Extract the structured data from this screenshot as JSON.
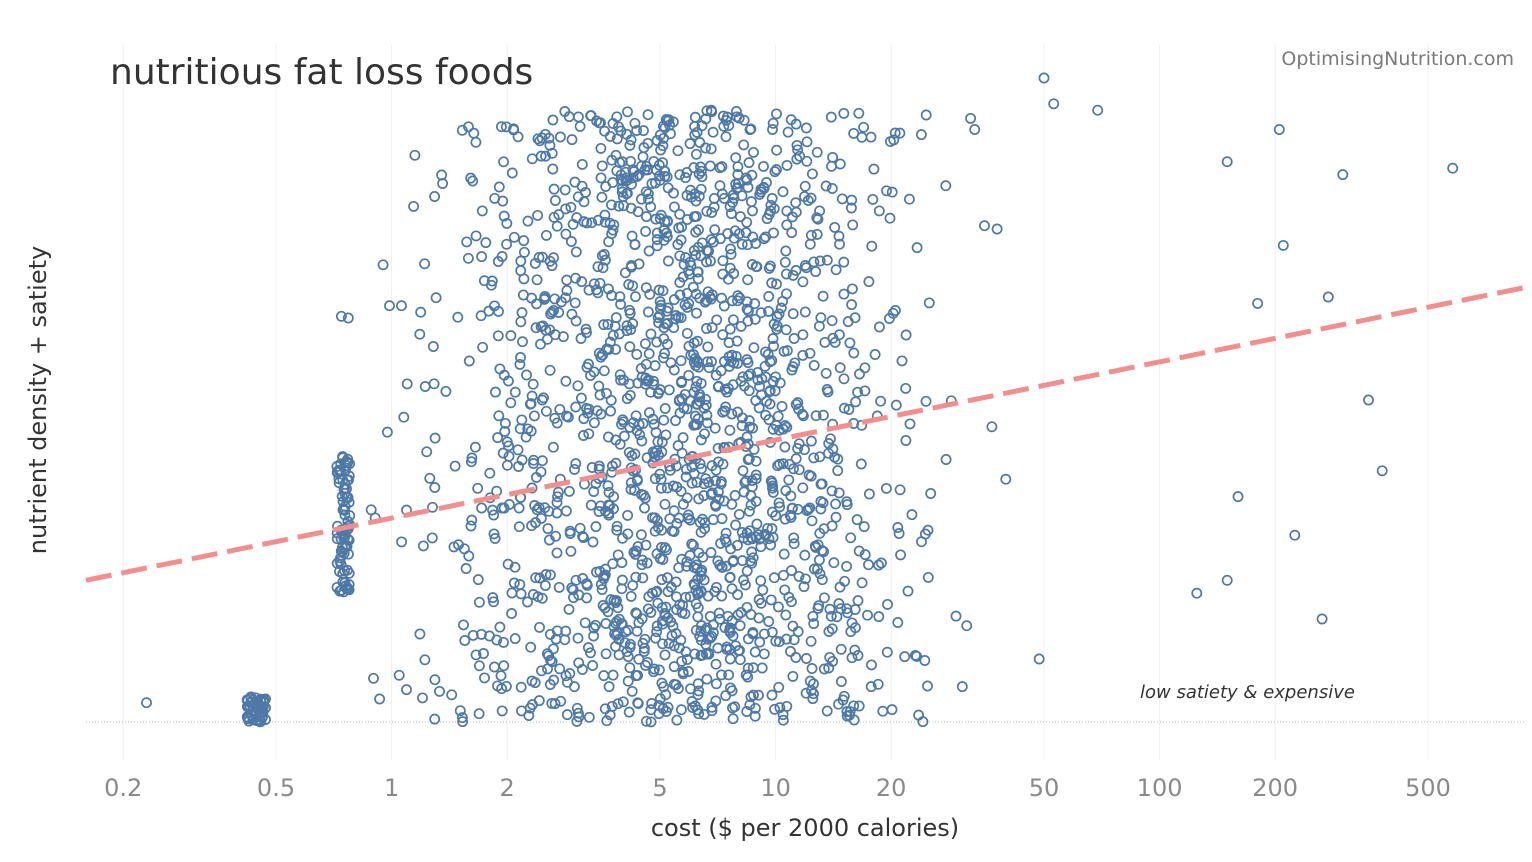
{
  "chart_data": {
    "type": "scatter",
    "title": "nutritious fat loss foods",
    "watermark": "OptimisingNutrition.com",
    "xlabel": "cost ($ per 2000 calories)",
    "ylabel": "nutrient density + satiety",
    "x_scale": "log",
    "xlim": [
      0.16,
      900
    ],
    "ylim": [
      0,
      100
    ],
    "x_ticks": [
      0.2,
      0.5,
      1,
      2,
      5,
      10,
      20,
      50,
      100,
      200,
      500
    ],
    "x_tick_labels": [
      "0.2",
      "0.5",
      "1",
      "2",
      "5",
      "10",
      "20",
      "50",
      "100",
      "200",
      "500"
    ],
    "annotation": "low satiety & expensive",
    "marker_color": "#4e79a7",
    "trend_color": "#f28e8e",
    "trendline": {
      "x": [
        0.16,
        900
      ],
      "y": [
        22,
        67.5
      ],
      "style": "dashed"
    },
    "series": [
      {
        "name": "foods",
        "generated_count": 1800,
        "points": [
          {
            "x": 0.23,
            "y": 3
          },
          {
            "x": 1.15,
            "y": 88
          },
          {
            "x": 0.95,
            "y": 71
          },
          {
            "x": 0.74,
            "y": 63
          },
          {
            "x": 50,
            "y": 100
          },
          {
            "x": 53,
            "y": 96
          },
          {
            "x": 69,
            "y": 95
          },
          {
            "x": 33,
            "y": 92
          },
          {
            "x": 205,
            "y": 92
          },
          {
            "x": 580,
            "y": 86
          },
          {
            "x": 300,
            "y": 85
          },
          {
            "x": 150,
            "y": 87
          },
          {
            "x": 210,
            "y": 74
          },
          {
            "x": 275,
            "y": 66
          },
          {
            "x": 180,
            "y": 65
          },
          {
            "x": 350,
            "y": 50
          },
          {
            "x": 380,
            "y": 39
          },
          {
            "x": 160,
            "y": 35
          },
          {
            "x": 225,
            "y": 29
          },
          {
            "x": 265,
            "y": 16
          },
          {
            "x": 6.8,
            "y": 95
          },
          {
            "x": 2.9,
            "y": 94
          },
          {
            "x": 125,
            "y": 20
          },
          {
            "x": 150,
            "y": 22
          }
        ]
      }
    ]
  }
}
